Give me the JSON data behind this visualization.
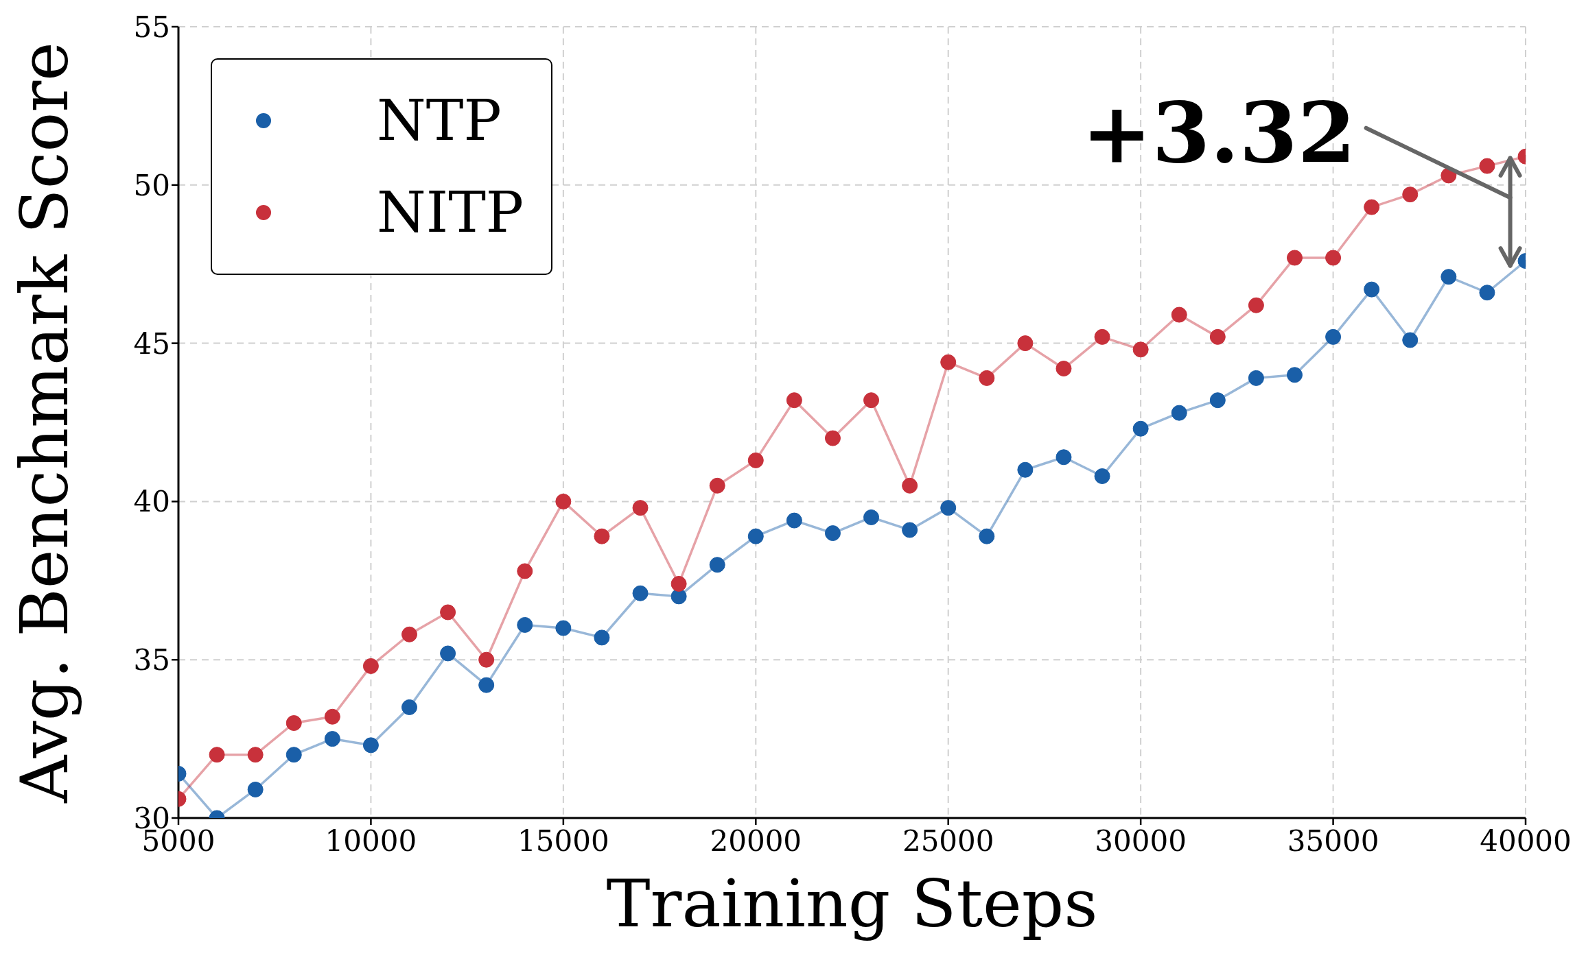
{
  "chart_data": {
    "type": "line",
    "xlabel": "Training Steps",
    "ylabel": "Avg. Benchmark Score",
    "x": [
      5000,
      6000,
      7000,
      8000,
      9000,
      10000,
      11000,
      12000,
      13000,
      14000,
      15000,
      16000,
      17000,
      18000,
      19000,
      20000,
      21000,
      22000,
      23000,
      24000,
      25000,
      26000,
      27000,
      28000,
      29000,
      30000,
      31000,
      32000,
      33000,
      34000,
      35000,
      36000,
      37000,
      38000,
      39000,
      40000
    ],
    "series": [
      {
        "name": "NTP",
        "color": "#1a5fa8",
        "values": [
          31.4,
          30.0,
          30.9,
          32.0,
          32.5,
          32.3,
          33.5,
          35.2,
          34.2,
          36.1,
          36.0,
          35.7,
          37.1,
          37.0,
          38.0,
          38.9,
          39.4,
          39.0,
          39.5,
          39.1,
          39.8,
          38.9,
          41.0,
          41.4,
          40.8,
          42.3,
          42.8,
          43.2,
          43.9,
          44.0,
          45.2,
          46.7,
          45.1,
          47.1,
          46.6,
          47.6
        ]
      },
      {
        "name": "NITP",
        "color": "#c8313b",
        "values": [
          30.6,
          32.0,
          32.0,
          33.0,
          33.2,
          34.8,
          35.8,
          36.5,
          35.0,
          37.8,
          40.0,
          38.9,
          39.8,
          37.4,
          40.5,
          41.3,
          43.2,
          42.0,
          43.2,
          40.5,
          44.4,
          43.9,
          45.0,
          44.2,
          45.2,
          44.8,
          45.9,
          45.2,
          46.2,
          47.7,
          47.7,
          49.3,
          49.7,
          50.3,
          50.6,
          50.9
        ]
      }
    ],
    "xlim": [
      5000,
      40000
    ],
    "xticks": [
      5000,
      10000,
      15000,
      20000,
      25000,
      30000,
      35000,
      40000
    ],
    "ylim": [
      30,
      55
    ],
    "yticks": [
      30,
      35,
      40,
      45,
      50,
      55
    ],
    "grid": true,
    "legend": "top left",
    "marker": "circle",
    "line_style": "solid",
    "annotations": [
      "+3.32"
    ]
  }
}
